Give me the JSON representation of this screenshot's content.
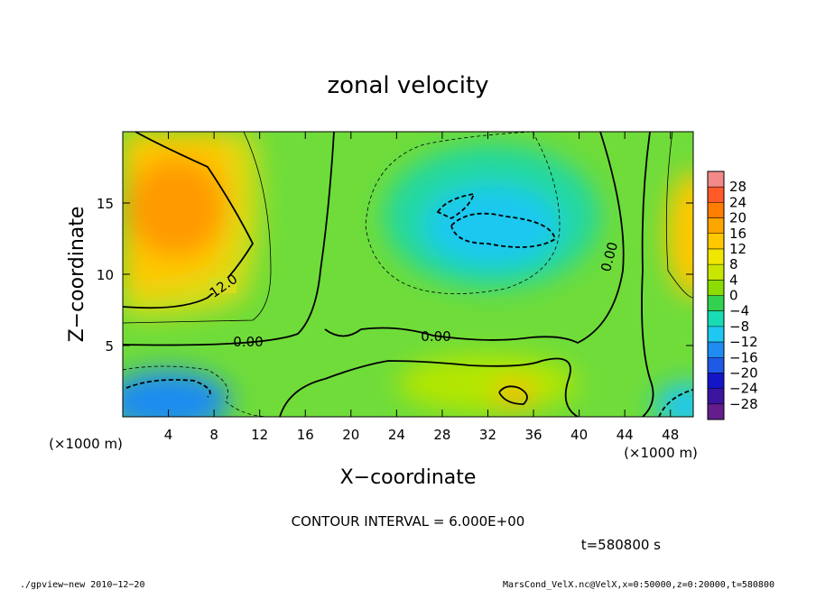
{
  "chart_data": {
    "type": "heatmap",
    "title": "zonal velocity",
    "xlabel": "X−coordinate",
    "ylabel": "Z−coordinate",
    "x_unit": "(×1000 m)",
    "y_unit": "(×1000 m)",
    "xlim": [
      0,
      50
    ],
    "ylim": [
      0,
      20
    ],
    "xticks": [
      "4",
      "8",
      "12",
      "16",
      "20",
      "24",
      "28",
      "32",
      "36",
      "40",
      "44",
      "48"
    ],
    "yticks": [
      "5",
      "10",
      "15"
    ],
    "contour_interval_text": "CONTOUR INTERVAL = 6.000E+00",
    "time_text": "t=580800 s",
    "footer_left": "./gpview−new  2010−12−20",
    "footer_right": "MarsCond_VelX.nc@VelX,x=0:50000,z=0:20000,t=580800",
    "contour_labels": [
      "12.0",
      "0.00",
      "0.00",
      "0.00"
    ],
    "colorbar": {
      "levels": [
        "28",
        "24",
        "20",
        "16",
        "12",
        "8",
        "4",
        "0",
        "−4",
        "−8",
        "−12",
        "−16",
        "−20",
        "−24",
        "−28"
      ],
      "colors": [
        "#f28a8a",
        "#ff5a28",
        "#ff7d00",
        "#ffa500",
        "#ffc800",
        "#f0e600",
        "#c8e600",
        "#8cdc00",
        "#32d250",
        "#19dcb4",
        "#1ec8f0",
        "#1e8cf0",
        "#1e5ae6",
        "#1414c8",
        "#3c14a0",
        "#641e8c"
      ]
    },
    "field_centers": [
      {
        "label": "max",
        "x": 5,
        "z": 14,
        "value": 18
      },
      {
        "label": "min",
        "x": 31,
        "z": 13.5,
        "value": -12
      },
      {
        "label": "min",
        "x": 3,
        "z": 1.2,
        "value": -18
      },
      {
        "label": "max",
        "x": 34,
        "z": 1.5,
        "value": 12
      },
      {
        "label": "max",
        "x": 49,
        "z": 12,
        "value": 16
      },
      {
        "label": "min",
        "x": 48,
        "z": 1,
        "value": -18
      }
    ]
  }
}
